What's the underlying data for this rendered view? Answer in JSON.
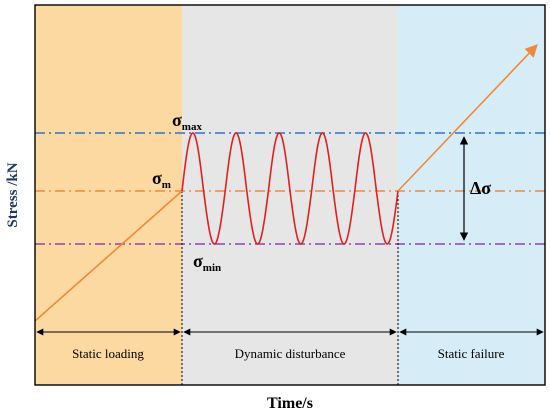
{
  "axes": {
    "y_label": "Stress /kN",
    "x_label": "Time/s"
  },
  "stages": [
    {
      "label": "Static loading",
      "color": "#FCD9A0"
    },
    {
      "label": "Dynamic disturbance",
      "color": "#E6E6E6"
    },
    {
      "label": "Static failure",
      "color": "#D6EDF8"
    }
  ],
  "levels": {
    "max": {
      "symbol": "σ",
      "subscript": "max",
      "color": "#2E75C8"
    },
    "mean": {
      "symbol": "σ",
      "subscript": "m",
      "color": "#F08A3A"
    },
    "min": {
      "symbol": "σ",
      "subscript": "min",
      "color": "#8E44AD"
    }
  },
  "amplitude_label": "Δσ",
  "sine_cycles": 5,
  "colors": {
    "load_line": "#F08A3A",
    "sine_wave": "#E02020",
    "frame": "#000000",
    "axis_label": "#000000"
  }
}
